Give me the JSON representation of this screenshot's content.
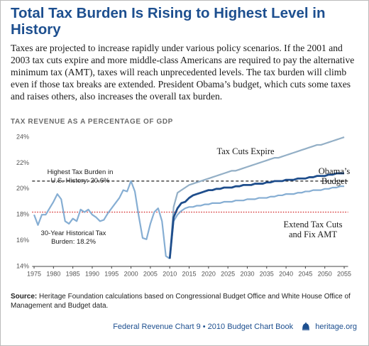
{
  "chart_data": {
    "type": "line",
    "title": "Total Tax Burden Is Rising to Highest Level in History",
    "description": "Taxes are projected to increase rapidly under various policy scenarios. If the 2001 and 2003 tax cuts expire and more middle-class Americans are required to pay the alternative minimum tax (AMT), taxes will reach unprecedented levels. The tax burden will climb even if those tax breaks are extended. President Obama’s budget, which cuts some taxes and raises others, also increases the overall tax burden.",
    "subtitle": "TAX REVENUE AS A PERCENTAGE OF GDP",
    "source_label": "Source:",
    "source": "Heritage Foundation calculations based on Congressional Budget Office and White House Office of Management and Budget data.",
    "footer": "Federal Revenue Chart 9 • 2010 Budget Chart Book",
    "site": "heritage.org",
    "xlim": [
      1974.5,
      2056
    ],
    "ylim": [
      14,
      24.7
    ],
    "xticks": [
      1975,
      1980,
      1985,
      1990,
      1995,
      2000,
      2005,
      2010,
      2015,
      2020,
      2025,
      2030,
      2035,
      2040,
      2045,
      2050,
      2055
    ],
    "yticks": [
      {
        "value": 14,
        "label": "14%"
      },
      {
        "value": 16,
        "label": "16%"
      },
      {
        "value": 18,
        "label": "18%"
      },
      {
        "value": 20,
        "label": "20%"
      },
      {
        "value": 22,
        "label": "22%"
      },
      {
        "value": 24,
        "label": "24%"
      }
    ],
    "grid": false,
    "x": [
      1975,
      1976,
      1977,
      1978,
      1979,
      1980,
      1981,
      1982,
      1983,
      1984,
      1985,
      1986,
      1987,
      1988,
      1989,
      1990,
      1991,
      1992,
      1993,
      1994,
      1995,
      1996,
      1997,
      1998,
      1999,
      2000,
      2001,
      2002,
      2003,
      2004,
      2005,
      2006,
      2007,
      2008,
      2009,
      2010,
      2011,
      2012,
      2013,
      2014,
      2015,
      2016,
      2017,
      2018,
      2019,
      2020,
      2021,
      2022,
      2023,
      2024,
      2025,
      2026,
      2027,
      2028,
      2029,
      2030,
      2031,
      2032,
      2033,
      2034,
      2035,
      2036,
      2037,
      2038,
      2039,
      2040,
      2041,
      2042,
      2043,
      2044,
      2045,
      2046,
      2047,
      2048,
      2049,
      2050,
      2051,
      2052,
      2053,
      2054,
      2055
    ],
    "series": [
      {
        "color": "#86aed3",
        "values": [
          18.0,
          17.2,
          18.0,
          18.0,
          18.5,
          19.0,
          19.6,
          19.2,
          17.5,
          17.3,
          17.7,
          17.5,
          18.4,
          18.2,
          18.4,
          18.0,
          17.8,
          17.5,
          17.6,
          18.1,
          18.5,
          18.9,
          19.3,
          19.9,
          19.8,
          20.6,
          19.8,
          17.9,
          16.2,
          16.1,
          17.3,
          18.2,
          18.5,
          17.5,
          14.8,
          14.6,
          null,
          null,
          null,
          null,
          null,
          null,
          null,
          null,
          null,
          null,
          null,
          null,
          null,
          null,
          null,
          null,
          null,
          null,
          null,
          null,
          null,
          null,
          null,
          null,
          null,
          null,
          null,
          null,
          null,
          null,
          null,
          null,
          null,
          null,
          null,
          null,
          null,
          null,
          null,
          null,
          null,
          null,
          null,
          null,
          null
        ]
      },
      {
        "name": "Tax Cuts Expire",
        "color": "#93afc6",
        "values": [
          null,
          null,
          null,
          null,
          null,
          null,
          null,
          null,
          null,
          null,
          null,
          null,
          null,
          null,
          null,
          null,
          null,
          null,
          null,
          null,
          null,
          null,
          null,
          null,
          null,
          null,
          null,
          null,
          null,
          null,
          null,
          null,
          null,
          null,
          null,
          14.6,
          18.6,
          19.7,
          19.9,
          20.1,
          20.3,
          20.4,
          20.5,
          20.6,
          20.7,
          20.8,
          20.9,
          21.0,
          21.1,
          21.2,
          21.3,
          21.4,
          21.4,
          21.5,
          21.6,
          21.7,
          21.8,
          21.9,
          22.0,
          22.1,
          22.2,
          22.3,
          22.4,
          22.4,
          22.5,
          22.6,
          22.7,
          22.8,
          22.9,
          23.0,
          23.1,
          23.2,
          23.3,
          23.4,
          23.4,
          23.5,
          23.6,
          23.7,
          23.8,
          23.9,
          24.0
        ]
      },
      {
        "name": "Obama’s Budget",
        "color": "#1f4e8c",
        "values": [
          null,
          null,
          null,
          null,
          null,
          null,
          null,
          null,
          null,
          null,
          null,
          null,
          null,
          null,
          null,
          null,
          null,
          null,
          null,
          null,
          null,
          null,
          null,
          null,
          null,
          null,
          null,
          null,
          null,
          null,
          null,
          null,
          null,
          null,
          null,
          14.6,
          17.8,
          18.5,
          18.9,
          19.0,
          19.3,
          19.5,
          19.6,
          19.7,
          19.8,
          19.9,
          19.9,
          20.0,
          20.0,
          20.1,
          20.1,
          20.1,
          20.2,
          20.2,
          20.3,
          20.3,
          20.3,
          20.4,
          20.4,
          20.4,
          20.5,
          20.5,
          20.6,
          20.6,
          20.6,
          20.7,
          20.7,
          20.7,
          20.8,
          20.8,
          20.8,
          20.9,
          20.9,
          21.0,
          21.0,
          21.0,
          21.1,
          21.1,
          21.2,
          21.2,
          21.2
        ]
      },
      {
        "name": "Extend Tax Cuts and Fix AMT",
        "color": "#86aed3",
        "values": [
          null,
          null,
          null,
          null,
          null,
          null,
          null,
          null,
          null,
          null,
          null,
          null,
          null,
          null,
          null,
          null,
          null,
          null,
          null,
          null,
          null,
          null,
          null,
          null,
          null,
          null,
          null,
          null,
          null,
          null,
          null,
          null,
          null,
          null,
          null,
          14.6,
          17.5,
          18.0,
          18.3,
          18.5,
          18.6,
          18.6,
          18.7,
          18.7,
          18.8,
          18.8,
          18.9,
          18.9,
          18.9,
          19.0,
          19.0,
          19.0,
          19.1,
          19.1,
          19.1,
          19.2,
          19.2,
          19.2,
          19.3,
          19.3,
          19.3,
          19.4,
          19.4,
          19.5,
          19.5,
          19.6,
          19.6,
          19.6,
          19.7,
          19.7,
          19.8,
          19.8,
          19.9,
          19.9,
          19.9,
          20.0,
          20.0,
          20.1,
          20.1,
          20.2,
          20.2
        ]
      }
    ],
    "reference_lines": [
      {
        "value": 20.6,
        "label": "Highest Tax Burden in U.S. History: 20.6%",
        "color": "#222222",
        "style": "dashed"
      },
      {
        "value": 18.2,
        "label": "30-Year Historical Tax Burden: 18.2%",
        "color": "#d42a2a",
        "style": "dotted"
      }
    ]
  }
}
